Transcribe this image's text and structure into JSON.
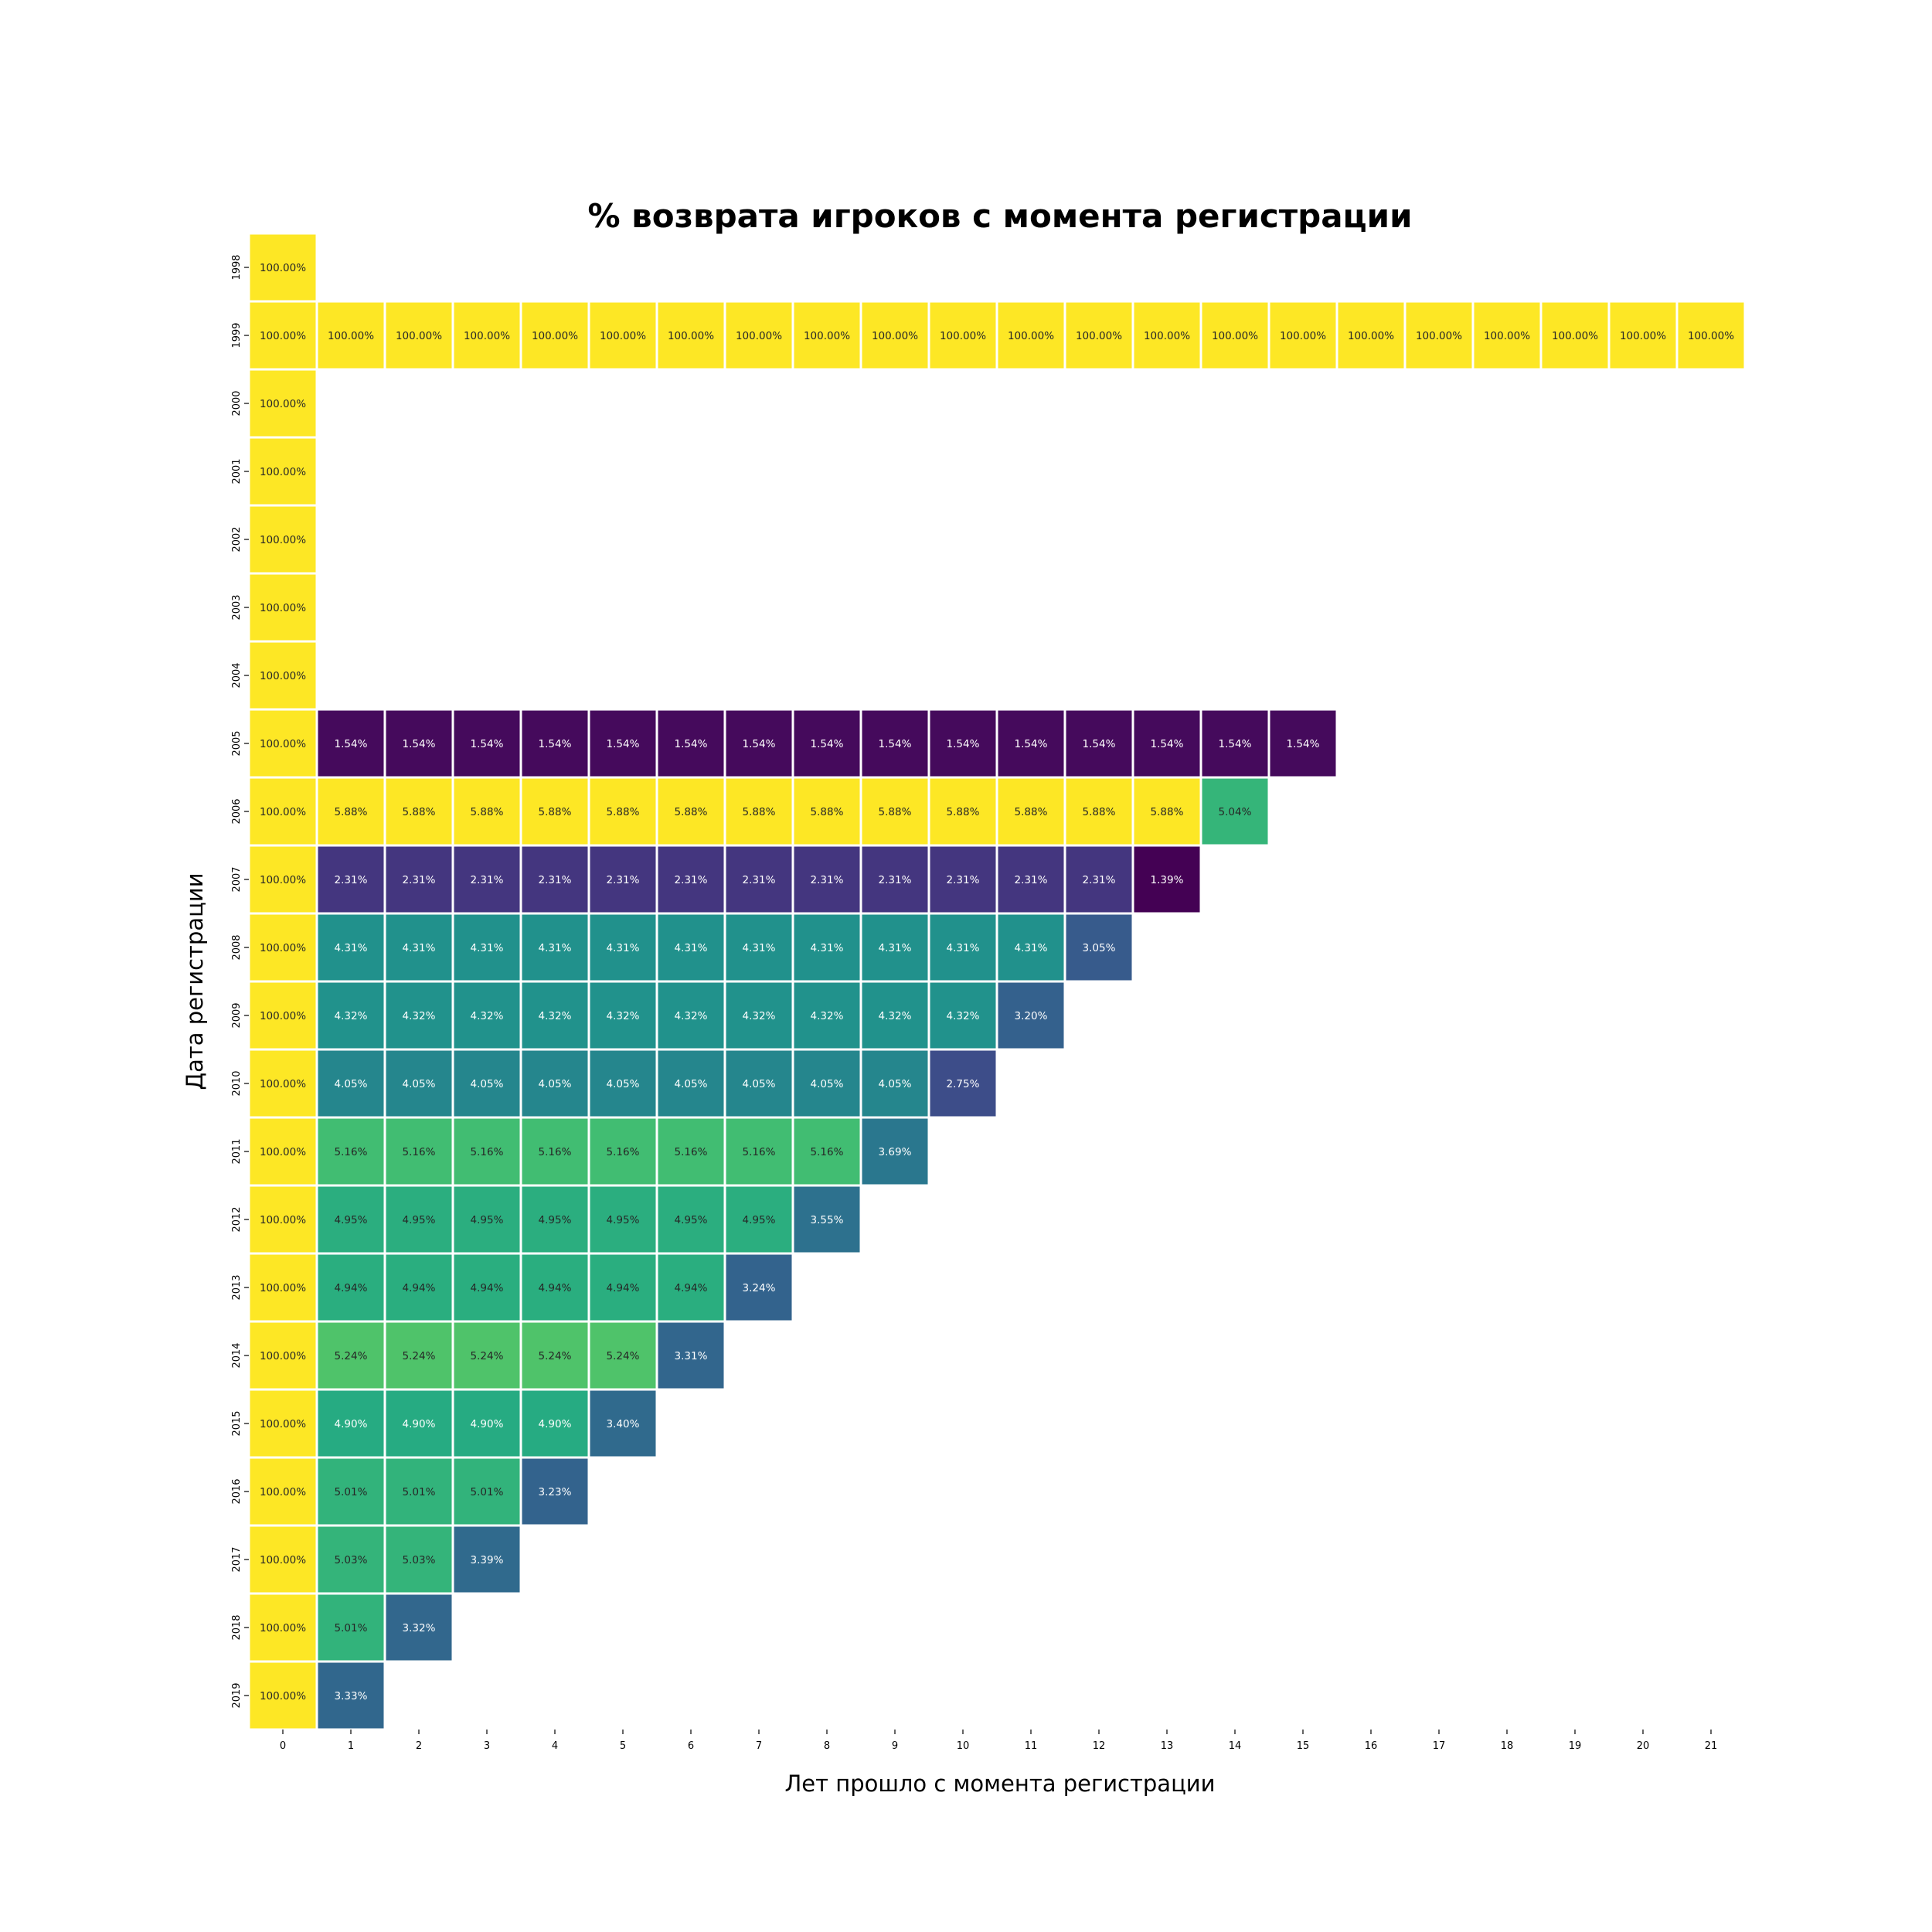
{
  "chart_data": {
    "type": "heatmap",
    "title": "% возврата игроков с момента регистрации",
    "xlabel": "Лет прошло с момента регистрации",
    "ylabel": "Дата регистрации",
    "x": [
      "0",
      "1",
      "2",
      "3",
      "4",
      "5",
      "6",
      "7",
      "8",
      "9",
      "10",
      "11",
      "12",
      "13",
      "14",
      "15",
      "16",
      "17",
      "18",
      "19",
      "20",
      "21"
    ],
    "y": [
      "1998",
      "1999",
      "2000",
      "2001",
      "2002",
      "2003",
      "2004",
      "2005",
      "2006",
      "2007",
      "2008",
      "2009",
      "2010",
      "2011",
      "2012",
      "2013",
      "2014",
      "2015",
      "2016",
      "2017",
      "2018",
      "2019"
    ],
    "colormap": "viridis",
    "value_range": [
      1.39,
      5.88
    ],
    "grid": false,
    "legend": "none",
    "values": [
      [
        "100.00%"
      ],
      [
        "100.00%",
        "100.00%",
        "100.00%",
        "100.00%",
        "100.00%",
        "100.00%",
        "100.00%",
        "100.00%",
        "100.00%",
        "100.00%",
        "100.00%",
        "100.00%",
        "100.00%",
        "100.00%",
        "100.00%",
        "100.00%",
        "100.00%",
        "100.00%",
        "100.00%",
        "100.00%",
        "100.00%",
        "100.00%"
      ],
      [
        "100.00%"
      ],
      [
        "100.00%"
      ],
      [
        "100.00%"
      ],
      [
        "100.00%"
      ],
      [
        "100.00%"
      ],
      [
        "100.00%",
        "1.54%",
        "1.54%",
        "1.54%",
        "1.54%",
        "1.54%",
        "1.54%",
        "1.54%",
        "1.54%",
        "1.54%",
        "1.54%",
        "1.54%",
        "1.54%",
        "1.54%",
        "1.54%",
        "1.54%"
      ],
      [
        "100.00%",
        "5.88%",
        "5.88%",
        "5.88%",
        "5.88%",
        "5.88%",
        "5.88%",
        "5.88%",
        "5.88%",
        "5.88%",
        "5.88%",
        "5.88%",
        "5.88%",
        "5.88%",
        "5.04%"
      ],
      [
        "100.00%",
        "2.31%",
        "2.31%",
        "2.31%",
        "2.31%",
        "2.31%",
        "2.31%",
        "2.31%",
        "2.31%",
        "2.31%",
        "2.31%",
        "2.31%",
        "2.31%",
        "1.39%"
      ],
      [
        "100.00%",
        "4.31%",
        "4.31%",
        "4.31%",
        "4.31%",
        "4.31%",
        "4.31%",
        "4.31%",
        "4.31%",
        "4.31%",
        "4.31%",
        "4.31%",
        "3.05%"
      ],
      [
        "100.00%",
        "4.32%",
        "4.32%",
        "4.32%",
        "4.32%",
        "4.32%",
        "4.32%",
        "4.32%",
        "4.32%",
        "4.32%",
        "4.32%",
        "3.20%"
      ],
      [
        "100.00%",
        "4.05%",
        "4.05%",
        "4.05%",
        "4.05%",
        "4.05%",
        "4.05%",
        "4.05%",
        "4.05%",
        "4.05%",
        "2.75%"
      ],
      [
        "100.00%",
        "5.16%",
        "5.16%",
        "5.16%",
        "5.16%",
        "5.16%",
        "5.16%",
        "5.16%",
        "5.16%",
        "3.69%"
      ],
      [
        "100.00%",
        "4.95%",
        "4.95%",
        "4.95%",
        "4.95%",
        "4.95%",
        "4.95%",
        "4.95%",
        "3.55%"
      ],
      [
        "100.00%",
        "4.94%",
        "4.94%",
        "4.94%",
        "4.94%",
        "4.94%",
        "4.94%",
        "3.24%"
      ],
      [
        "100.00%",
        "5.24%",
        "5.24%",
        "5.24%",
        "5.24%",
        "5.24%",
        "3.31%"
      ],
      [
        "100.00%",
        "4.90%",
        "4.90%",
        "4.90%",
        "4.90%",
        "3.40%"
      ],
      [
        "100.00%",
        "5.01%",
        "5.01%",
        "5.01%",
        "3.23%"
      ],
      [
        "100.00%",
        "5.03%",
        "5.03%",
        "3.39%"
      ],
      [
        "100.00%",
        "5.01%",
        "3.32%"
      ],
      [
        "100.00%",
        "3.33%"
      ]
    ]
  }
}
